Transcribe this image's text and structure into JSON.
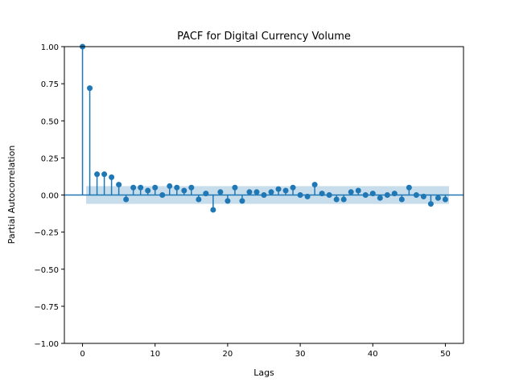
{
  "chart_data": {
    "type": "scatter",
    "title": "PACF for Digital Currency Volume",
    "xlabel": "Lags",
    "ylabel": "Partial Autocorrelation",
    "xlim": [
      -2.5,
      52.5
    ],
    "ylim": [
      -1.0,
      1.0
    ],
    "xticks": [
      0,
      10,
      20,
      30,
      40,
      50
    ],
    "xtick_labels": [
      "0",
      "10",
      "20",
      "30",
      "40",
      "50"
    ],
    "yticks": [
      1.0,
      0.75,
      0.5,
      0.25,
      0.0,
      -0.25,
      -0.5,
      -0.75,
      -1.0
    ],
    "ytick_labels": [
      "1.00",
      "0.75",
      "0.50",
      "0.25",
      "0.00",
      "−0.25",
      "−0.50",
      "−0.75",
      "−1.00"
    ],
    "grid": false,
    "confidence_band": {
      "x_range": [
        0.5,
        50.5
      ],
      "lower": -0.06,
      "upper": 0.06
    },
    "series": [
      {
        "x": [
          0,
          1,
          2,
          3,
          4,
          5,
          6,
          7,
          8,
          9,
          10,
          11,
          12,
          13,
          14,
          15,
          16,
          17,
          18,
          19,
          20,
          21,
          22,
          23,
          24,
          25,
          26,
          27,
          28,
          29,
          30,
          31,
          32,
          33,
          34,
          35,
          36,
          37,
          38,
          39,
          40,
          41,
          42,
          43,
          44,
          45,
          46,
          47,
          48,
          49,
          50
        ],
        "values": [
          1.0,
          0.72,
          0.14,
          0.14,
          0.12,
          0.07,
          -0.03,
          0.05,
          0.05,
          0.03,
          0.05,
          0.0,
          0.06,
          0.05,
          0.03,
          0.05,
          -0.03,
          0.01,
          -0.1,
          0.02,
          -0.04,
          0.05,
          -0.04,
          0.02,
          0.02,
          0.0,
          0.02,
          0.04,
          0.03,
          0.05,
          0.0,
          -0.01,
          0.07,
          0.01,
          0.0,
          -0.03,
          -0.03,
          0.02,
          0.03,
          0.0,
          0.01,
          -0.02,
          0.0,
          0.01,
          -0.03,
          0.05,
          0.0,
          -0.01,
          -0.06,
          -0.02,
          -0.03
        ]
      }
    ],
    "colors": {
      "series": "#1f77b4",
      "band": "#1f77b4",
      "zero_line": "#1f77b4"
    }
  }
}
